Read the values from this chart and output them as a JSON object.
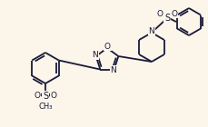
{
  "background_color": "#fbf5ea",
  "line_color": "#1a1a3a",
  "line_width": 1.3,
  "font_size": 6.5,
  "figsize": [
    2.29,
    1.4
  ],
  "dpi": 100,
  "xlim": [
    0,
    229
  ],
  "ylim": [
    0,
    140
  ]
}
